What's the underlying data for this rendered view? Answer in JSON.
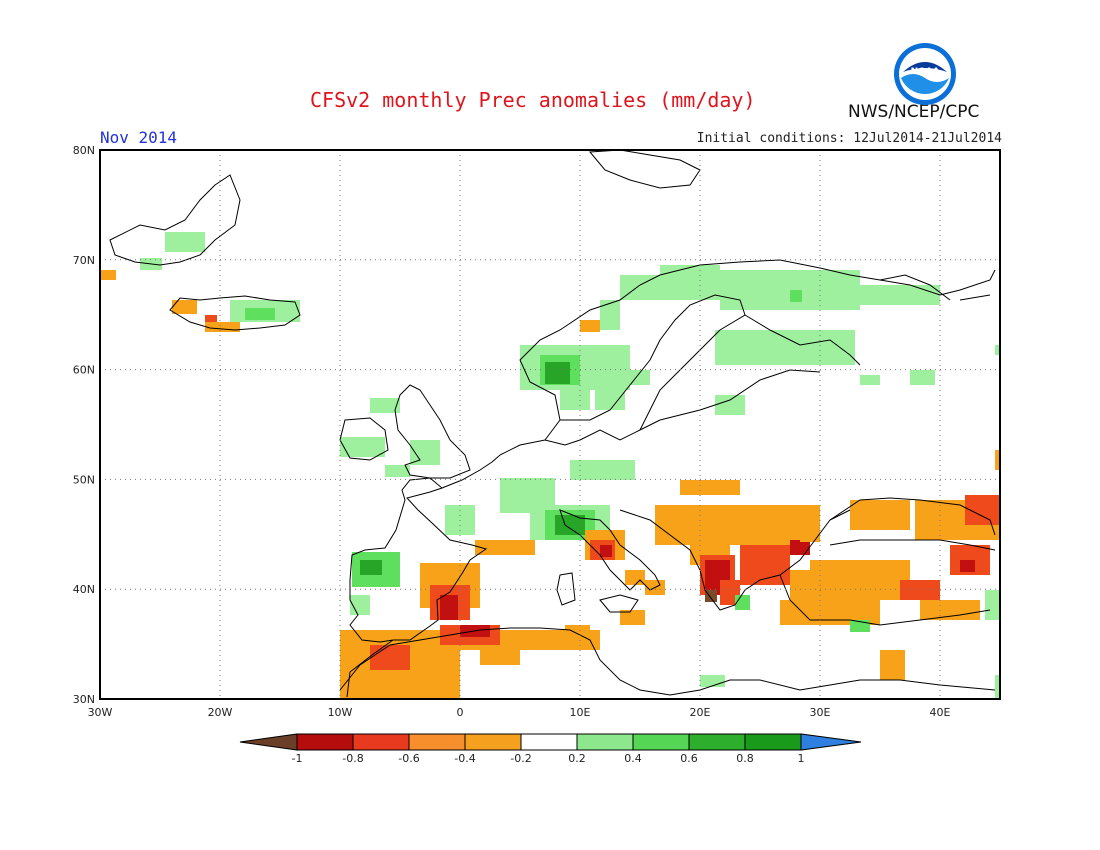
{
  "header": {
    "title": "CFSv2 monthly Prec anomalies (mm/day)",
    "organization": "NWS/NCEP/CPC",
    "logo_text": "NOAA",
    "valid_month": "Nov 2014",
    "initial_conditions": "Initial conditions: 12Jul2014-21Jul2014"
  },
  "map": {
    "lat_range": [
      30,
      80
    ],
    "lon_range": [
      -30,
      45
    ],
    "lat_labels": [
      "80N",
      "70N",
      "60N",
      "50N",
      "40N",
      "30N"
    ],
    "lon_labels": [
      "30W",
      "20W",
      "10W",
      "0",
      "10E",
      "20E",
      "30E",
      "40E"
    ]
  },
  "legend": {
    "labels": [
      "-1",
      "-0.8",
      "-0.6",
      "-0.4",
      "-0.2",
      "0.2",
      "0.4",
      "0.6",
      "0.8",
      "1"
    ],
    "colors": [
      "#6b3f27",
      "#b50d0d",
      "#e83a1e",
      "#f68f2c",
      "#f6a020",
      "#ffffff",
      "#8de88d",
      "#55d655",
      "#2dae2d",
      "#1a9a1a",
      "#2f7fe0"
    ]
  },
  "colors": {
    "light_green": "#9ef09e",
    "green": "#5ee05e",
    "dark_green": "#27a527",
    "orange": "#f8a21a",
    "red_orange": "#ee4a1c",
    "dark_red": "#c20f0f",
    "brown": "#7a4a2a"
  }
}
